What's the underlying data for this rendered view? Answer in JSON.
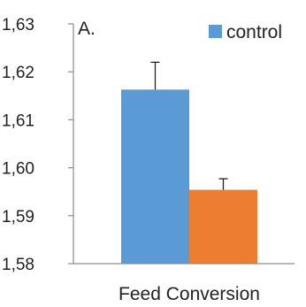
{
  "chart_data": {
    "type": "bar",
    "panel_label": "A.",
    "categories": [
      "Feed Conversion"
    ],
    "series": [
      {
        "name": "control",
        "values": [
          1.6163
        ],
        "error": [
          0.0057
        ],
        "color": "#5b9bd5"
      },
      {
        "name": "",
        "values": [
          1.5954
        ],
        "error": [
          0.0023
        ],
        "color": "#ed7d31"
      }
    ],
    "ylim": [
      1.58,
      1.63
    ],
    "yticks": [
      "1,58",
      "1,59",
      "1,60",
      "1,61",
      "1,62",
      "1,63"
    ],
    "ytick_values": [
      1.58,
      1.59,
      1.6,
      1.61,
      1.62,
      1.63
    ],
    "xlabel": "",
    "ylabel": "",
    "grid": false,
    "legend_position": "top-right"
  }
}
